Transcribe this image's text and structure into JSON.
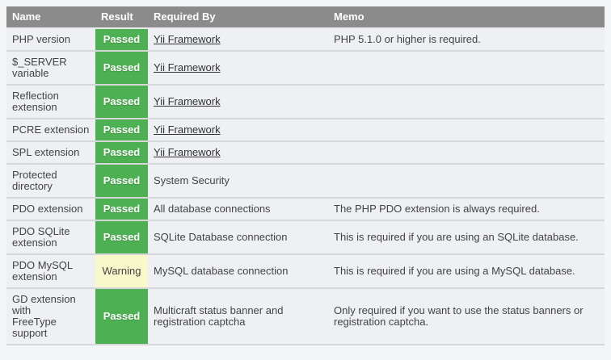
{
  "colors": {
    "page_bg": "#f4f5f6",
    "header_bg": "#8b8b8b",
    "header_text": "#ffffff",
    "row_bg": "#eef0f3",
    "row_separator": "#d5d7da",
    "header_separator": "#ececee",
    "passed_bg": "#4db052",
    "passed_text": "#ffffff",
    "warning_bg": "#f8f8cb",
    "text": "#434343",
    "link": "#333333"
  },
  "table": {
    "headers": {
      "name": "Name",
      "result": "Result",
      "required_by": "Required By",
      "memo": "Memo"
    },
    "rows": [
      {
        "name": "PHP version",
        "result": "Passed",
        "status": "passed",
        "required_by": "Yii Framework",
        "required_by_is_link": true,
        "memo": "PHP 5.1.0 or higher is required."
      },
      {
        "name": "$_SERVER\nvariable",
        "result": "Passed",
        "status": "passed",
        "required_by": "Yii Framework",
        "required_by_is_link": true,
        "memo": ""
      },
      {
        "name": "Reflection\nextension",
        "result": "Passed",
        "status": "passed",
        "required_by": "Yii Framework",
        "required_by_is_link": true,
        "memo": ""
      },
      {
        "name": "PCRE extension",
        "result": "Passed",
        "status": "passed",
        "required_by": "Yii Framework",
        "required_by_is_link": true,
        "memo": ""
      },
      {
        "name": "SPL extension",
        "result": "Passed",
        "status": "passed",
        "required_by": "Yii Framework",
        "required_by_is_link": true,
        "memo": ""
      },
      {
        "name": "Protected\ndirectory",
        "result": "Passed",
        "status": "passed",
        "required_by": "System Security",
        "required_by_is_link": false,
        "memo": ""
      },
      {
        "name": "PDO extension",
        "result": "Passed",
        "status": "passed",
        "required_by": "All database connections",
        "required_by_is_link": false,
        "memo": "The PHP PDO extension is always required."
      },
      {
        "name": "PDO SQLite\nextension",
        "result": "Passed",
        "status": "passed",
        "required_by": "SQLite Database connection",
        "required_by_is_link": false,
        "memo": "This is required if you are using an SQLite database."
      },
      {
        "name": "PDO MySQL\nextension",
        "result": "Warning",
        "status": "warning",
        "required_by": "MySQL database connection",
        "required_by_is_link": false,
        "memo": "This is required if you are using a MySQL database."
      },
      {
        "name": "GD extension\nwith\nFreeType\nsupport",
        "result": "Passed",
        "status": "passed",
        "required_by": "Multicraft status banner and registration captcha",
        "required_by_is_link": false,
        "memo": "Only required if you want to use the status banners or registration captcha."
      }
    ]
  }
}
